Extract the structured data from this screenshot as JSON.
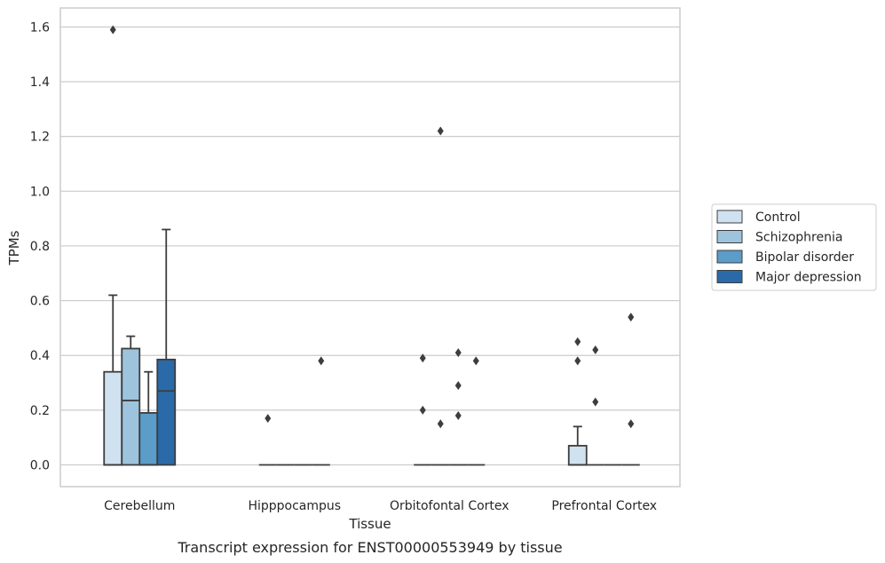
{
  "chart_data": {
    "type": "box",
    "title": "",
    "caption": "Transcript expression for ENST00000553949 by tissue",
    "xlabel": "Tissue",
    "ylabel": "TPMs",
    "ylim": [
      -0.08,
      1.67
    ],
    "yticks": [
      "0.0",
      "0.2",
      "0.4",
      "0.6",
      "0.8",
      "1.0",
      "1.2",
      "1.4",
      "1.6"
    ],
    "grid": "horizontal",
    "legend_position": "right",
    "categories": [
      "Cerebellum",
      "Hipppocampus",
      "Orbitofontal Cortex",
      "Prefrontal Cortex"
    ],
    "series": [
      {
        "name": "Control",
        "color": "#d0e1f0",
        "boxes": [
          {
            "q1": 0.0,
            "median": 0.0,
            "q3": 0.34,
            "whisker_low": 0.0,
            "whisker_high": 0.62,
            "outliers": [
              1.59
            ]
          },
          {
            "q1": 0.0,
            "median": 0.0,
            "q3": 0.0,
            "whisker_low": 0.0,
            "whisker_high": 0.0,
            "outliers": [
              0.17
            ]
          },
          {
            "q1": 0.0,
            "median": 0.0,
            "q3": 0.0,
            "whisker_low": 0.0,
            "whisker_high": 0.0,
            "outliers": [
              0.39,
              0.2
            ]
          },
          {
            "q1": 0.0,
            "median": 0.0,
            "q3": 0.07,
            "whisker_low": 0.0,
            "whisker_high": 0.14,
            "outliers": [
              0.45,
              0.38
            ]
          }
        ]
      },
      {
        "name": "Schizophrenia",
        "color": "#9dc3dd",
        "boxes": [
          {
            "q1": 0.0,
            "median": 0.235,
            "q3": 0.425,
            "whisker_low": 0.0,
            "whisker_high": 0.47,
            "outliers": []
          },
          {
            "q1": 0.0,
            "median": 0.0,
            "q3": 0.0,
            "whisker_low": 0.0,
            "whisker_high": 0.0,
            "outliers": []
          },
          {
            "q1": 0.0,
            "median": 0.0,
            "q3": 0.0,
            "whisker_low": 0.0,
            "whisker_high": 0.0,
            "outliers": [
              1.22,
              0.15
            ]
          },
          {
            "q1": 0.0,
            "median": 0.0,
            "q3": 0.0,
            "whisker_low": 0.0,
            "whisker_high": 0.0,
            "outliers": [
              0.42,
              0.23
            ]
          }
        ]
      },
      {
        "name": "Bipolar disorder",
        "color": "#5b9cc8",
        "boxes": [
          {
            "q1": 0.0,
            "median": 0.0,
            "q3": 0.19,
            "whisker_low": 0.0,
            "whisker_high": 0.34,
            "outliers": []
          },
          {
            "q1": 0.0,
            "median": 0.0,
            "q3": 0.0,
            "whisker_low": 0.0,
            "whisker_high": 0.0,
            "outliers": []
          },
          {
            "q1": 0.0,
            "median": 0.0,
            "q3": 0.0,
            "whisker_low": 0.0,
            "whisker_high": 0.0,
            "outliers": [
              0.41,
              0.29,
              0.18
            ]
          },
          {
            "q1": 0.0,
            "median": 0.0,
            "q3": 0.0,
            "whisker_low": 0.0,
            "whisker_high": 0.0,
            "outliers": []
          }
        ]
      },
      {
        "name": "Major depression",
        "color": "#2a6aa8",
        "boxes": [
          {
            "q1": 0.0,
            "median": 0.27,
            "q3": 0.385,
            "whisker_low": 0.0,
            "whisker_high": 0.86,
            "outliers": []
          },
          {
            "q1": 0.0,
            "median": 0.0,
            "q3": 0.0,
            "whisker_low": 0.0,
            "whisker_high": 0.0,
            "outliers": [
              0.38
            ]
          },
          {
            "q1": 0.0,
            "median": 0.0,
            "q3": 0.0,
            "whisker_low": 0.0,
            "whisker_high": 0.0,
            "outliers": [
              0.38
            ]
          },
          {
            "q1": 0.0,
            "median": 0.0,
            "q3": 0.0,
            "whisker_low": 0.0,
            "whisker_high": 0.0,
            "outliers": [
              0.54,
              0.15
            ]
          }
        ]
      }
    ],
    "colors": {
      "grid": "#cccccc",
      "frame": "#cccccc",
      "box_edge": "#3d3d3d",
      "outlier": "#3d3d3d"
    }
  }
}
